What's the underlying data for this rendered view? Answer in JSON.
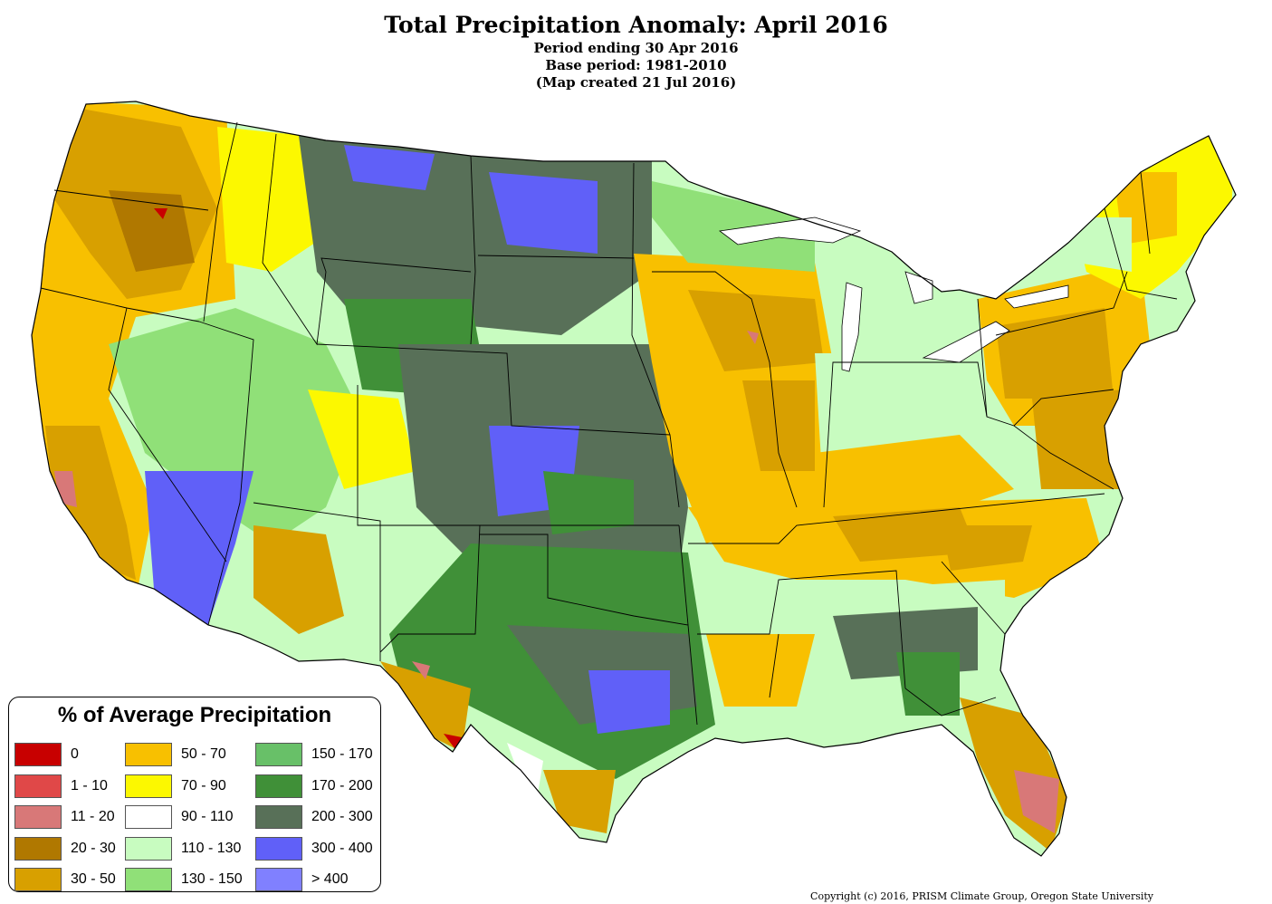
{
  "header": {
    "title": "Total Precipitation Anomaly: April 2016",
    "line1": "Period ending 30 Apr 2016",
    "line2": "Base period: 1981-2010",
    "line3": "(Map created 21 Jul 2016)"
  },
  "legend": {
    "title": "% of Average Precipitation",
    "items": [
      {
        "label": "0",
        "color": "#c80000"
      },
      {
        "label": "1 - 10",
        "color": "#e04848"
      },
      {
        "label": "11 - 20",
        "color": "#d87878"
      },
      {
        "label": "20 - 30",
        "color": "#b07800"
      },
      {
        "label": "30 - 50",
        "color": "#d8a000"
      },
      {
        "label": "50 - 70",
        "color": "#f8c000"
      },
      {
        "label": "70 - 90",
        "color": "#fcf800"
      },
      {
        "label": "90 - 110",
        "color": "#ffffff"
      },
      {
        "label": "110 - 130",
        "color": "#c8fcc0"
      },
      {
        "label": "130 - 150",
        "color": "#90e078"
      },
      {
        "label": "150 - 170",
        "color": "#68c068"
      },
      {
        "label": "170 - 200",
        "color": "#409038"
      },
      {
        "label": "200 - 300",
        "color": "#587058"
      },
      {
        "label": "300 - 400",
        "color": "#6060f8"
      },
      {
        "label": "> 400",
        "color": "#8080ff"
      }
    ]
  },
  "footer": {
    "copyright": "Copyright (c) 2016, PRISM Climate Group, Oregon State University"
  }
}
